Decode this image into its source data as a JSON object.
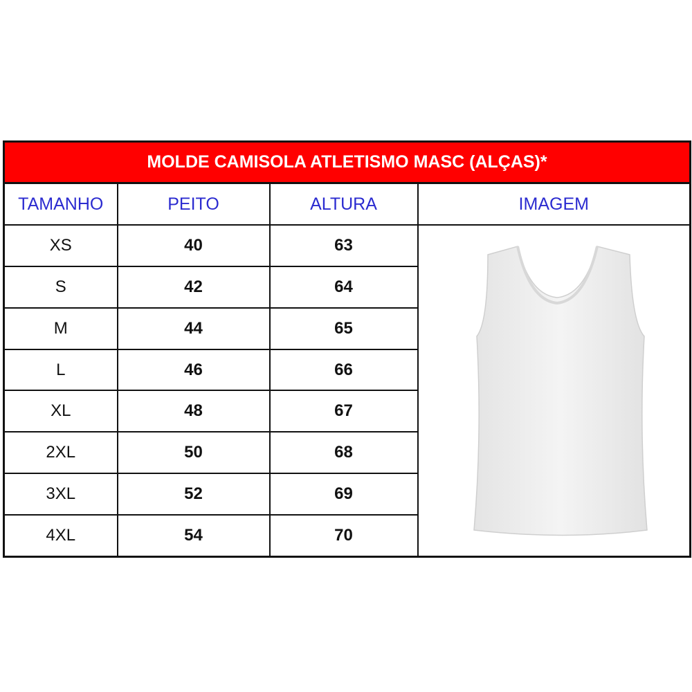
{
  "title": "MOLDE CAMISOLA ATLETISMO MASC (ALÇAS)*",
  "headers": [
    "TAMANHO",
    "PEITO",
    "ALTURA",
    "IMAGEM"
  ],
  "rows": [
    {
      "size": "XS",
      "peito": "40",
      "altura": "63"
    },
    {
      "size": "S",
      "peito": "42",
      "altura": "64"
    },
    {
      "size": "M",
      "peito": "44",
      "altura": "65"
    },
    {
      "size": "L",
      "peito": "46",
      "altura": "66"
    },
    {
      "size": "XL",
      "peito": "48",
      "altura": "67"
    },
    {
      "size": "2XL",
      "peito": "50",
      "altura": "68"
    },
    {
      "size": "3XL",
      "peito": "52",
      "altura": "69"
    },
    {
      "size": "4XL",
      "peito": "54",
      "altura": "70"
    }
  ],
  "colors": {
    "title_bg": "#ff0000",
    "header_text": "#2b2bd0"
  },
  "image": "white-sleeveless-tank-top"
}
